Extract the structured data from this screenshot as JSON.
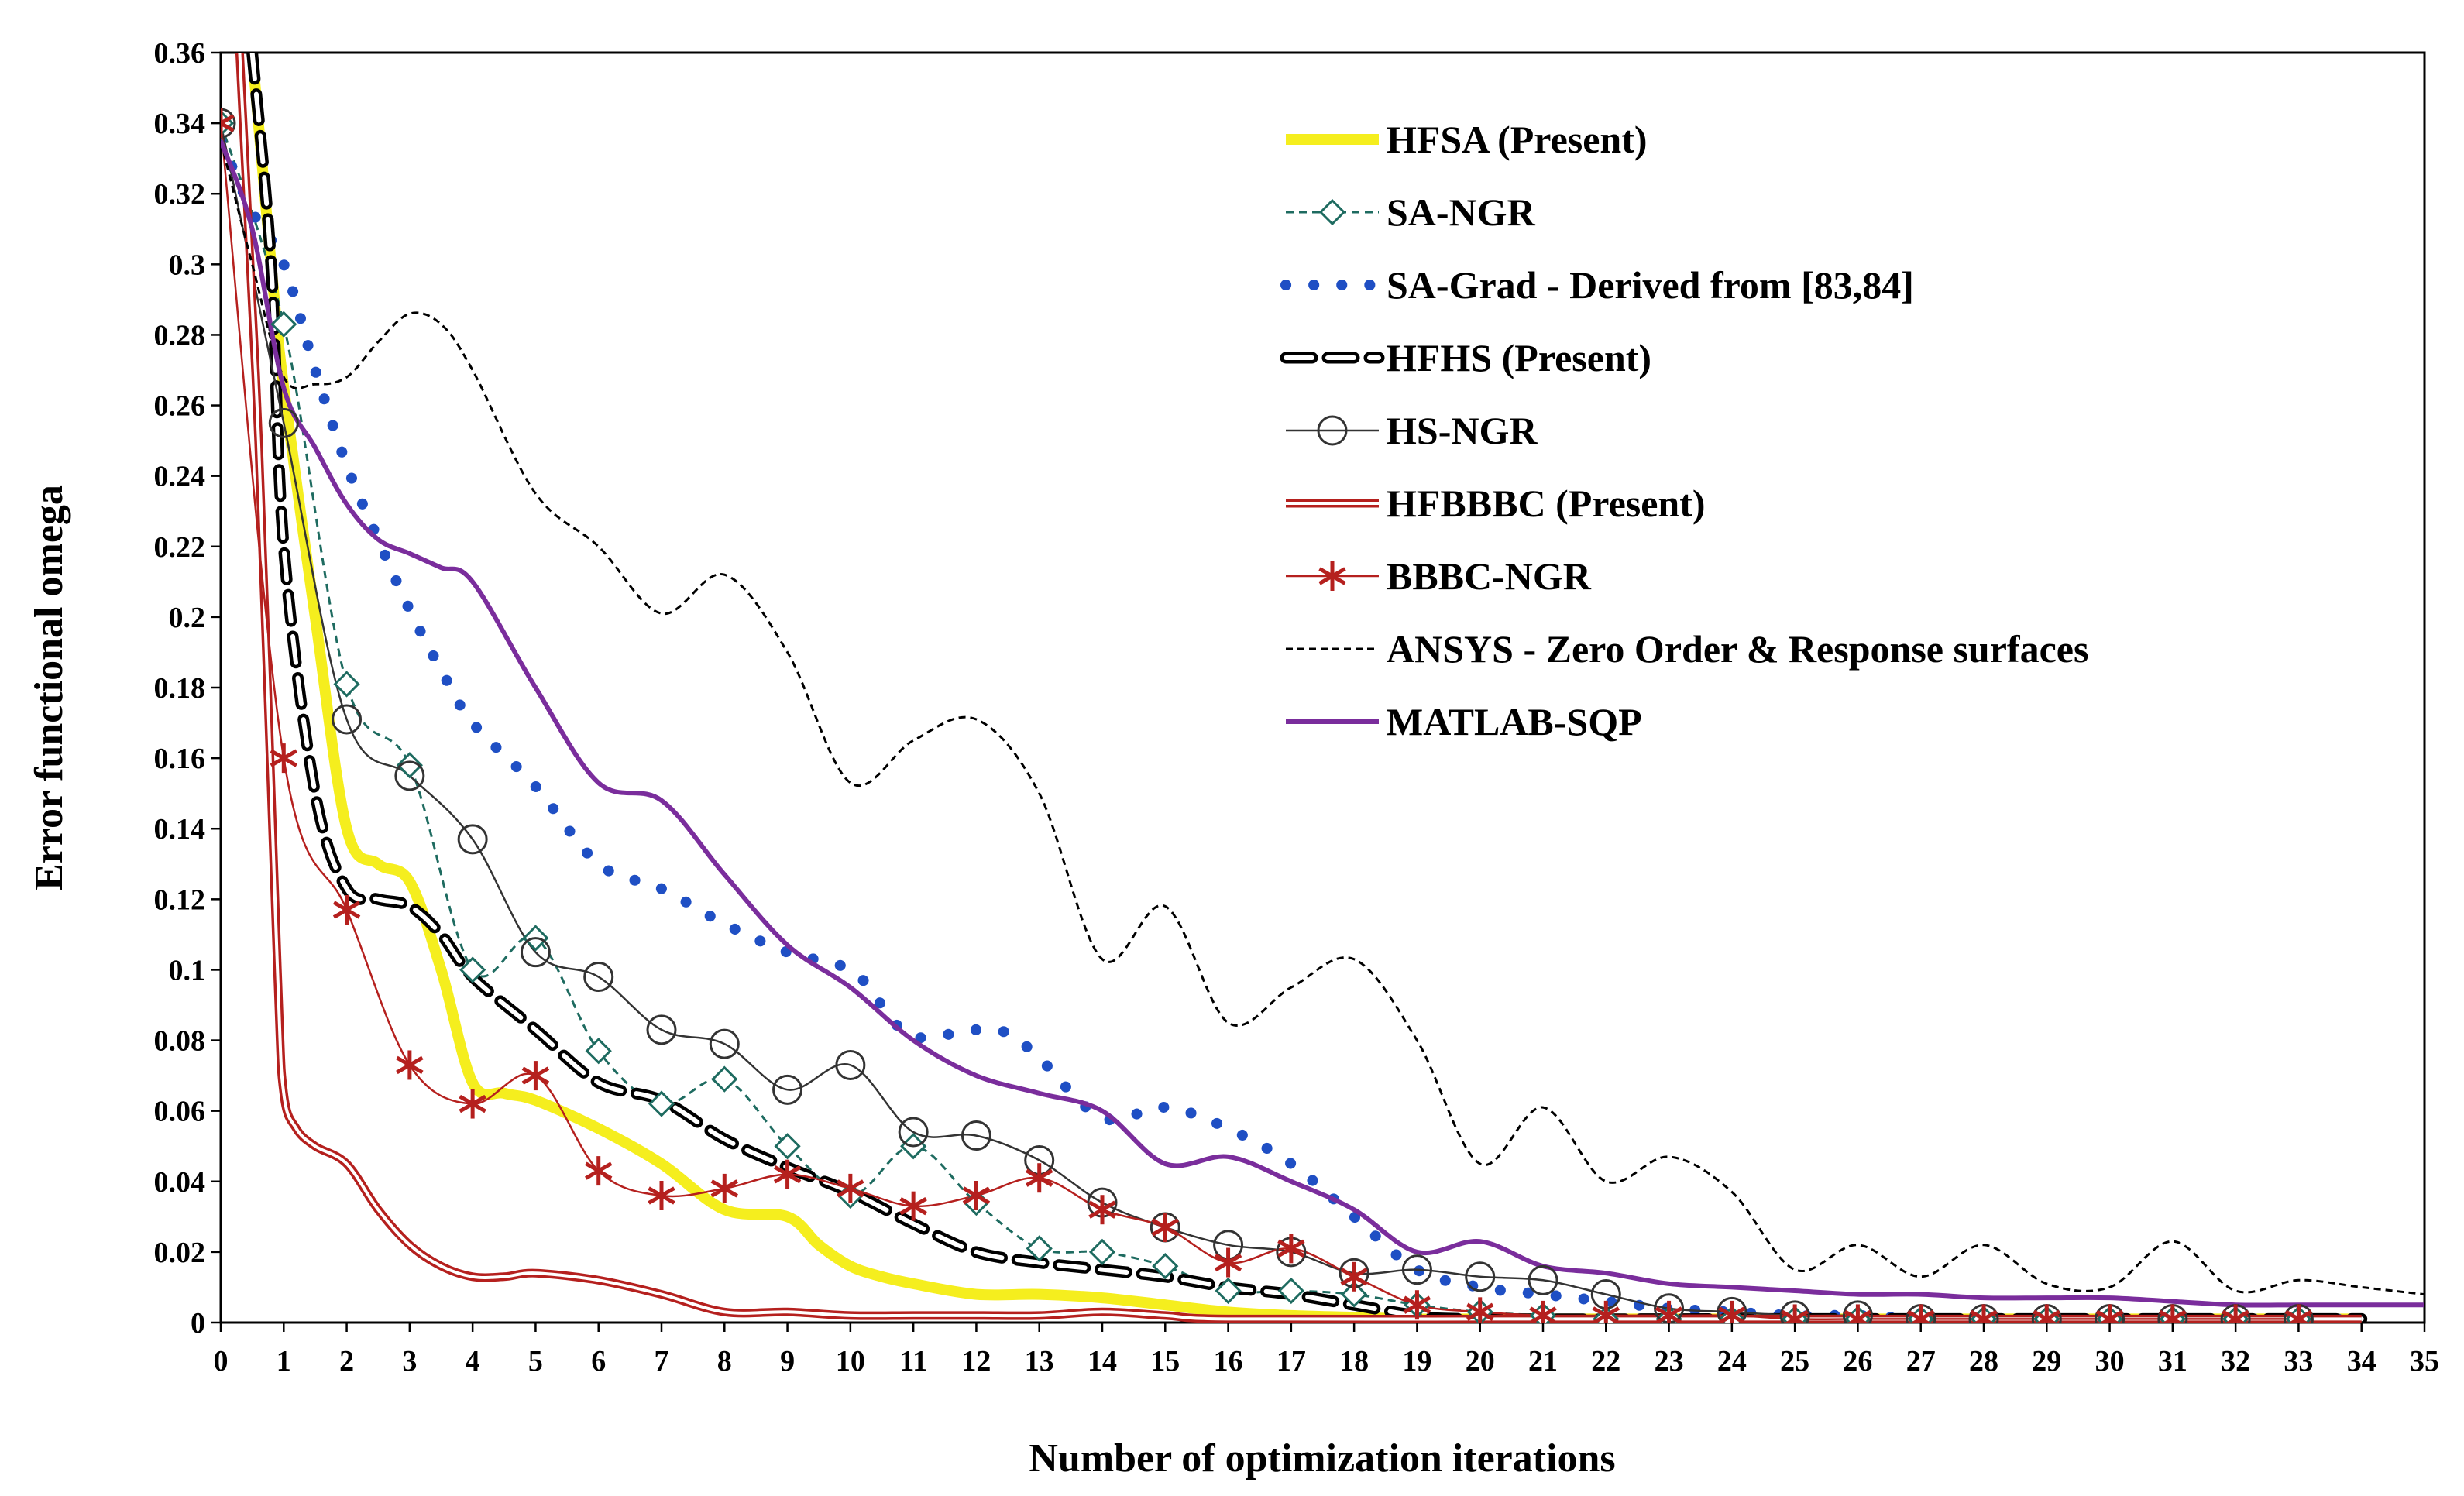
{
  "chart_data": {
    "type": "line",
    "title": "",
    "xlabel": "Number of optimization iterations",
    "ylabel": "Error functional omega",
    "xlim": [
      0,
      35
    ],
    "ylim": [
      0,
      0.36
    ],
    "x_ticks": [
      "0",
      "1",
      "2",
      "3",
      "4",
      "5",
      "6",
      "7",
      "8",
      "9",
      "10",
      "11",
      "12",
      "13",
      "14",
      "15",
      "16",
      "17",
      "18",
      "19",
      "20",
      "21",
      "22",
      "23",
      "24",
      "25",
      "26",
      "27",
      "28",
      "29",
      "30",
      "31",
      "32",
      "33",
      "34",
      "35"
    ],
    "y_ticks": [
      "0",
      "0.02",
      "0.04",
      "0.06",
      "0.08",
      "0.1",
      "0.12",
      "0.14",
      "0.16",
      "0.18",
      "0.2",
      "0.22",
      "0.24",
      "0.26",
      "0.28",
      "0.3",
      "0.32",
      "0.34",
      "0.36"
    ],
    "legend_position": "top-right",
    "series": [
      {
        "name": "HFSA (Present)",
        "style": "yellow-thick",
        "color": "#f5ee1e",
        "x": [
          0.5,
          0.8,
          1,
          1.5,
          2,
          2.5,
          3,
          3.5,
          4,
          4.5,
          5,
          6,
          7,
          8,
          9,
          9.5,
          10,
          10.5,
          11,
          12,
          13,
          14,
          15,
          16,
          17,
          18,
          19,
          20,
          25,
          30,
          34
        ],
        "y": [
          0.36,
          0.3,
          0.265,
          0.2,
          0.14,
          0.13,
          0.125,
          0.1,
          0.068,
          0.065,
          0.063,
          0.055,
          0.045,
          0.032,
          0.03,
          0.022,
          0.016,
          0.013,
          0.011,
          0.008,
          0.008,
          0.007,
          0.005,
          0.003,
          0.002,
          0.0015,
          0.001,
          0.001,
          0.001,
          0.001,
          0.001
        ]
      },
      {
        "name": "SA-NGR",
        "style": "dashed-diamond",
        "color": "#1e6b60",
        "x": [
          0,
          1,
          2,
          3,
          4,
          5,
          6,
          7,
          8,
          9,
          10,
          11,
          12,
          13,
          14,
          15,
          16,
          17,
          18,
          19,
          20,
          21,
          22,
          23,
          24,
          25,
          26,
          27,
          28,
          29,
          30,
          31,
          32,
          33
        ],
        "y": [
          0.34,
          0.283,
          0.181,
          0.158,
          0.1,
          0.109,
          0.077,
          0.062,
          0.069,
          0.05,
          0.036,
          0.05,
          0.034,
          0.021,
          0.02,
          0.016,
          0.009,
          0.009,
          0.008,
          0.005,
          0.003,
          0.002,
          0.001,
          0.001,
          0.001,
          0.001,
          0.001,
          0.001,
          0.001,
          0.001,
          0.001,
          0.001,
          0.001,
          0.001
        ]
      },
      {
        "name": "SA-Grad - Derived from [83,84]",
        "style": "blue-dots",
        "color": "#1f4fc4",
        "x": [
          0,
          0.5,
          1,
          1.5,
          2,
          2.5,
          3,
          3.5,
          4,
          5,
          6,
          7,
          8,
          9,
          10,
          10.5,
          11,
          12,
          12.5,
          13,
          14,
          15,
          16,
          17,
          18,
          19,
          20,
          21,
          22,
          23,
          24,
          25,
          26,
          27,
          28,
          29,
          30,
          31,
          32,
          33,
          34
        ],
        "y": [
          0.335,
          0.315,
          0.3,
          0.27,
          0.243,
          0.222,
          0.202,
          0.185,
          0.17,
          0.152,
          0.13,
          0.123,
          0.113,
          0.105,
          0.1,
          0.09,
          0.081,
          0.083,
          0.082,
          0.075,
          0.058,
          0.061,
          0.055,
          0.045,
          0.03,
          0.015,
          0.01,
          0.008,
          0.006,
          0.004,
          0.003,
          0.002,
          0.002,
          0.001,
          0.001,
          0.001,
          0.001,
          0.001,
          0.001,
          0.001,
          0.001
        ]
      },
      {
        "name": "HFHS (Present)",
        "style": "black-white-dashed",
        "color": "#000000",
        "x": [
          0.5,
          0.8,
          1,
          1.5,
          2,
          2.5,
          3,
          3.5,
          4,
          5,
          6,
          7,
          8,
          9,
          10,
          11,
          12,
          13,
          14,
          15,
          16,
          17,
          18,
          19,
          20,
          25,
          30,
          34
        ],
        "y": [
          0.36,
          0.3,
          0.22,
          0.15,
          0.123,
          0.12,
          0.118,
          0.11,
          0.098,
          0.083,
          0.068,
          0.063,
          0.052,
          0.044,
          0.037,
          0.028,
          0.02,
          0.017,
          0.015,
          0.013,
          0.01,
          0.008,
          0.005,
          0.002,
          0.001,
          0.001,
          0.001,
          0.001
        ]
      },
      {
        "name": "HS-NGR",
        "style": "thin-circle",
        "color": "#333333",
        "x": [
          0,
          1,
          2,
          3,
          4,
          5,
          6,
          7,
          8,
          9,
          10,
          11,
          12,
          13,
          14,
          15,
          16,
          17,
          18,
          19,
          20,
          21,
          22,
          23,
          24,
          25,
          26,
          27,
          28,
          29,
          30,
          31,
          32,
          33
        ],
        "y": [
          0.34,
          0.255,
          0.171,
          0.155,
          0.137,
          0.105,
          0.098,
          0.083,
          0.079,
          0.066,
          0.073,
          0.054,
          0.053,
          0.046,
          0.034,
          0.027,
          0.022,
          0.02,
          0.014,
          0.015,
          0.013,
          0.012,
          0.008,
          0.004,
          0.003,
          0.002,
          0.002,
          0.001,
          0.001,
          0.001,
          0.001,
          0.001,
          0.001,
          0.001
        ]
      },
      {
        "name": "HFBBBC (Present)",
        "style": "double-red",
        "color": "#b5201e",
        "x": [
          0.3,
          0.6,
          0.9,
          1,
          1.2,
          1.5,
          2,
          2.5,
          3,
          3.5,
          4,
          4.5,
          5,
          6,
          7,
          8,
          9,
          10,
          11,
          12,
          13,
          14,
          15,
          16,
          20,
          25,
          30,
          34
        ],
        "y": [
          0.36,
          0.25,
          0.1,
          0.065,
          0.055,
          0.05,
          0.045,
          0.032,
          0.022,
          0.016,
          0.013,
          0.013,
          0.014,
          0.012,
          0.008,
          0.003,
          0.003,
          0.002,
          0.002,
          0.002,
          0.002,
          0.003,
          0.002,
          0.001,
          0.001,
          0.001,
          0.001,
          0.001
        ]
      },
      {
        "name": "BBBC-NGR",
        "style": "thin-asterisk",
        "color": "#b5201e",
        "x": [
          0,
          1,
          2,
          3,
          4,
          5,
          6,
          7,
          8,
          9,
          10,
          11,
          12,
          13,
          14,
          15,
          16,
          17,
          18,
          19,
          20,
          21,
          22,
          23,
          24,
          25,
          26,
          27,
          28,
          29,
          30,
          31,
          32,
          33
        ],
        "y": [
          0.34,
          0.16,
          0.117,
          0.073,
          0.062,
          0.07,
          0.043,
          0.036,
          0.038,
          0.042,
          0.038,
          0.033,
          0.036,
          0.041,
          0.032,
          0.027,
          0.017,
          0.021,
          0.013,
          0.005,
          0.003,
          0.002,
          0.002,
          0.002,
          0.002,
          0.001,
          0.001,
          0.001,
          0.001,
          0.001,
          0.001,
          0.001,
          0.001,
          0.001
        ]
      },
      {
        "name": "ANSYS - Zero Order & Response surfaces",
        "style": "black-short-dash",
        "color": "#000000",
        "x": [
          0,
          0.5,
          1,
          1.5,
          2,
          2.5,
          3,
          3.5,
          4,
          5,
          6,
          7,
          8,
          9,
          10,
          11,
          12,
          13,
          14,
          15,
          16,
          17,
          18,
          19,
          20,
          21,
          22,
          23,
          24,
          25,
          26,
          27,
          28,
          29,
          30,
          31,
          32,
          33,
          34,
          35
        ],
        "y": [
          0.335,
          0.3,
          0.268,
          0.266,
          0.268,
          0.278,
          0.286,
          0.283,
          0.27,
          0.235,
          0.22,
          0.201,
          0.212,
          0.19,
          0.153,
          0.165,
          0.171,
          0.15,
          0.103,
          0.118,
          0.085,
          0.095,
          0.103,
          0.08,
          0.045,
          0.061,
          0.04,
          0.047,
          0.037,
          0.015,
          0.022,
          0.013,
          0.022,
          0.011,
          0.01,
          0.023,
          0.009,
          0.012,
          0.01,
          0.008
        ]
      },
      {
        "name": "MATLAB-SQP",
        "style": "purple-solid",
        "color": "#7a2d9c",
        "x": [
          0,
          0.5,
          1,
          1.5,
          2,
          2.5,
          3,
          3.5,
          4,
          5,
          6,
          7,
          8,
          9,
          10,
          11,
          12,
          13,
          14,
          15,
          16,
          17,
          18,
          19,
          20,
          21,
          22,
          23,
          24,
          25,
          26,
          27,
          28,
          29,
          30,
          31,
          32,
          33,
          34,
          35
        ],
        "y": [
          0.335,
          0.31,
          0.265,
          0.248,
          0.232,
          0.222,
          0.218,
          0.214,
          0.21,
          0.18,
          0.153,
          0.148,
          0.127,
          0.107,
          0.095,
          0.08,
          0.07,
          0.065,
          0.06,
          0.045,
          0.047,
          0.04,
          0.032,
          0.02,
          0.023,
          0.016,
          0.014,
          0.011,
          0.01,
          0.009,
          0.008,
          0.008,
          0.007,
          0.007,
          0.007,
          0.006,
          0.005,
          0.005,
          0.005,
          0.005
        ]
      }
    ]
  }
}
